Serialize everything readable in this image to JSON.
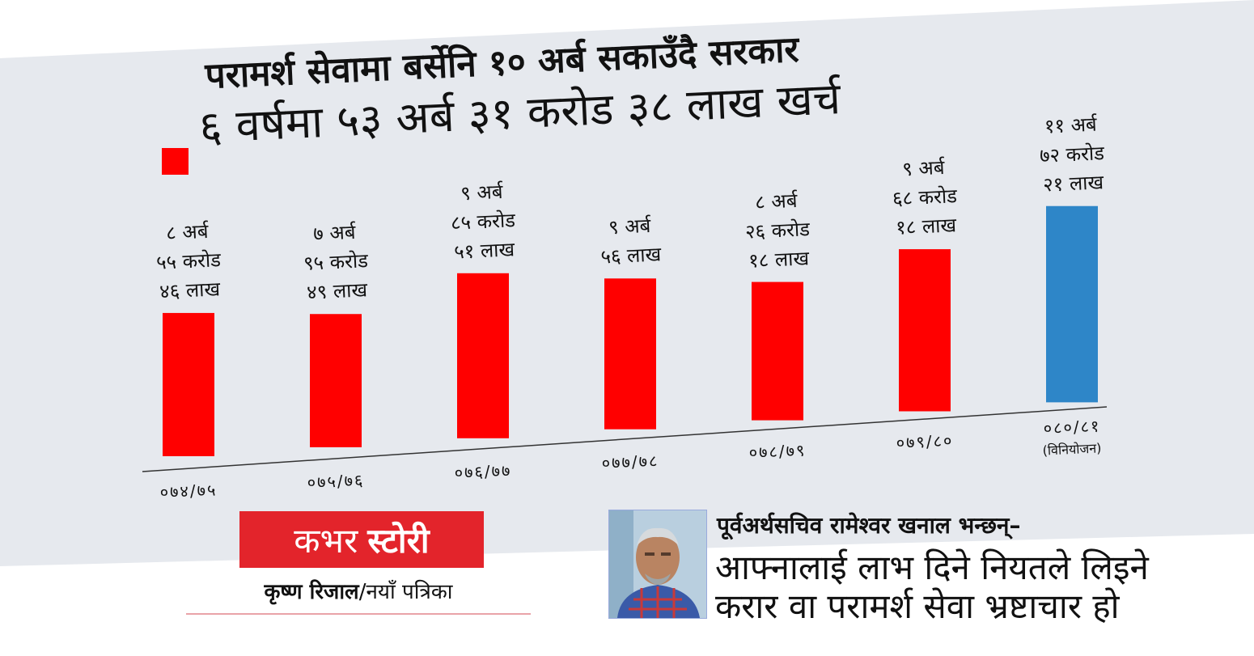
{
  "headline": {
    "title": "परामर्श सेवामा बर्सेनि १० अर्ब सकाउँदै सरकार",
    "subtitle": "६ वर्षमा ५३ अर्ब ३१ करोड ३८ लाख खर्च"
  },
  "colors": {
    "spent_bar": "#ff0000",
    "allocated_bar": "#2e86c8",
    "band_background": "#e6e9ee",
    "cover_red": "#e3242b"
  },
  "chart_data": {
    "type": "bar",
    "categories": [
      "०७४/७५",
      "०७५/७६",
      "०७६/७७",
      "०७७/७८",
      "०७८/७९",
      "०७९/८०",
      "०८०/८१"
    ],
    "category_notes": [
      "",
      "",
      "",
      "",
      "",
      "",
      "(विनियोजन)"
    ],
    "values": [
      8.5546,
      7.9549,
      9.8551,
      9.0056,
      8.2618,
      9.6818,
      11.7221
    ],
    "value_unit": "अर्ब रुपैयाँ",
    "data_labels": [
      [
        "८ अर्ब",
        "५५ करोड",
        "४६ लाख"
      ],
      [
        "७ अर्ब",
        "९५ करोड",
        "४९ लाख"
      ],
      [
        "९ अर्ब",
        "८५ करोड",
        "५१ लाख"
      ],
      [
        "९ अर्ब",
        "५६ लाख"
      ],
      [
        "८ अर्ब",
        "२६ करोड",
        "१८ लाख"
      ],
      [
        "९ अर्ब",
        "६८ करोड",
        "१८ लाख"
      ],
      [
        "११ अर्ब",
        "७२ करोड",
        "२१ लाख"
      ]
    ],
    "bar_colors": [
      "red",
      "red",
      "red",
      "red",
      "red",
      "red",
      "blue"
    ],
    "ylim": [
      0,
      12
    ],
    "grid": false
  },
  "cover": {
    "label_part1": "कभर",
    "label_part2": "स्टोरी"
  },
  "byline": {
    "author": "कृष्ण रिजाल",
    "separator": "/",
    "publication": "नयाँ पत्रिका"
  },
  "quote": {
    "intro": "पूर्वअर्थसचिव रामेश्वर खनाल भन्छन्–",
    "line1": "आफ्नालाई लाभ दिने नियतले लिइने",
    "line2": "करार वा परामर्श सेवा भ्रष्टाचार हो"
  },
  "photo": {
    "icon": "portrait-photo"
  }
}
